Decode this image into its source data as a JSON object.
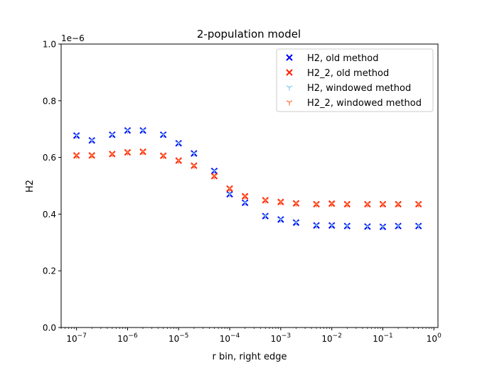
{
  "chart_data": {
    "type": "scatter",
    "title": "2-population model",
    "xlabel": "r bin, right edge",
    "ylabel": "H2",
    "x_scale": "log",
    "xlim": [
      5e-08,
      1.2
    ],
    "ylim": [
      0,
      1.0
    ],
    "y_offset_label": "1e−6",
    "y_ticks": [
      0.0,
      0.2,
      0.4,
      0.6,
      0.8,
      1.0
    ],
    "y_tick_labels": [
      "0.0",
      "0.2",
      "0.4",
      "0.6",
      "0.8",
      "1.0"
    ],
    "x_tick_exponents": [
      -7,
      -6,
      -5,
      -4,
      -3,
      -2,
      -1,
      0
    ],
    "grid": false,
    "legend_position": "top-right",
    "x": [
      1e-07,
      2e-07,
      5e-07,
      1e-06,
      2e-06,
      5e-06,
      1e-05,
      2e-05,
      5e-05,
      0.0001,
      0.0002,
      0.0005,
      0.001,
      0.002,
      0.005,
      0.01,
      0.02,
      0.05,
      0.1,
      0.2,
      0.5
    ],
    "series": [
      {
        "name": "H2, old method",
        "marker": "x",
        "color": "#0000ff",
        "values": [
          0.677,
          0.66,
          0.68,
          0.695,
          0.695,
          0.68,
          0.65,
          0.614,
          0.552,
          0.47,
          0.44,
          0.393,
          0.381,
          0.37,
          0.36,
          0.36,
          0.358,
          0.356,
          0.355,
          0.358,
          0.358
        ]
      },
      {
        "name": "H2_2, old method",
        "marker": "x",
        "color": "#ff2200",
        "values": [
          0.607,
          0.607,
          0.612,
          0.618,
          0.62,
          0.606,
          0.589,
          0.571,
          0.534,
          0.49,
          0.463,
          0.449,
          0.443,
          0.438,
          0.435,
          0.437,
          0.435,
          0.435,
          0.435,
          0.435,
          0.435
        ]
      },
      {
        "name": "H2, windowed method",
        "marker": "tri_down",
        "color": "#87ceeb",
        "values": [
          0.677,
          0.66,
          0.68,
          0.695,
          0.695,
          0.68,
          0.65,
          0.614,
          0.552,
          0.47,
          0.44,
          0.393,
          0.381,
          0.37,
          0.36,
          0.36,
          0.358,
          0.356,
          0.355,
          0.358,
          0.358
        ]
      },
      {
        "name": "H2_2, windowed method",
        "marker": "tri_down",
        "color": "#ff7f50",
        "values": [
          0.607,
          0.607,
          0.612,
          0.618,
          0.62,
          0.606,
          0.589,
          0.571,
          0.534,
          0.49,
          0.463,
          0.449,
          0.443,
          0.438,
          0.435,
          0.437,
          0.435,
          0.435,
          0.435,
          0.435,
          0.435
        ]
      }
    ]
  }
}
